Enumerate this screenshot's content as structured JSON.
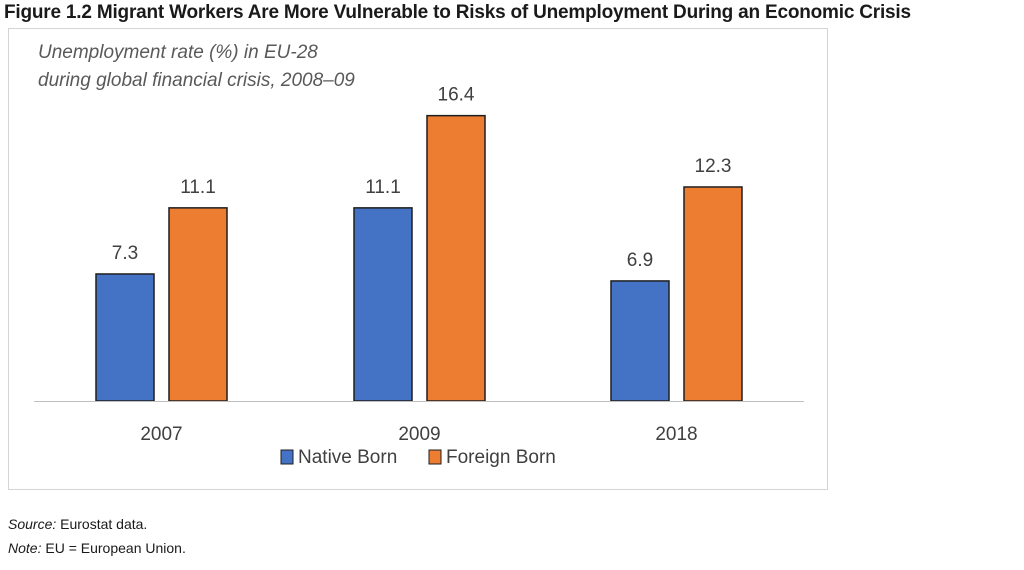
{
  "figure": {
    "title": "Figure 1.2 Migrant Workers Are More Vulnerable to Risks of Unemployment During an Economic Crisis"
  },
  "chart_data": {
    "type": "bar",
    "subtitle_lines": [
      "Unemployment rate (%) in EU-28",
      "during global financial crisis, 2008–09"
    ],
    "categories": [
      "2007",
      "2009",
      "2018"
    ],
    "series": [
      {
        "name": "Native Born",
        "values": [
          7.3,
          11.1,
          6.9
        ],
        "color": "#4472C4"
      },
      {
        "name": "Foreign Born",
        "values": [
          11.1,
          16.4,
          12.3
        ],
        "color": "#ED7D31"
      }
    ],
    "ylim": [
      0,
      18
    ],
    "grid": false,
    "legend_position": "bottom",
    "data_labels": true
  },
  "notes": {
    "source_label": "Source:",
    "source_text": "Eurostat data.",
    "note_label": "Note:",
    "note_text": "EU = European Union."
  }
}
